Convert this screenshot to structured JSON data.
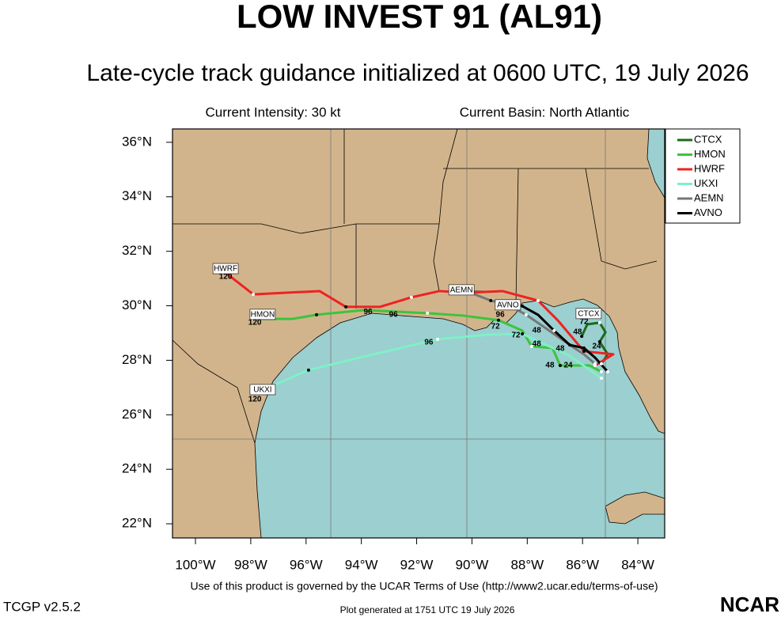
{
  "chart_data": {
    "type": "track-map",
    "title": "LOW INVEST 91 (AL91)",
    "subtitle": "Late-cycle track guidance initialized at 0600 UTC, 19 July 2026",
    "info_left": "Current Intensity: 30 kt",
    "info_right": "Current Basin: North Atlantic",
    "xlim": [
      -100.83,
      -83.03
    ],
    "ylim": [
      21.48,
      36.49
    ],
    "xticks": [
      {
        "value": -100,
        "label": "100°W"
      },
      {
        "value": -98,
        "label": "98°W"
      },
      {
        "value": -96,
        "label": "96°W"
      },
      {
        "value": -94,
        "label": "94°W"
      },
      {
        "value": -92,
        "label": "92°W"
      },
      {
        "value": -90,
        "label": "90°W"
      },
      {
        "value": -88,
        "label": "88°W"
      },
      {
        "value": -86,
        "label": "86°W"
      },
      {
        "value": -84,
        "label": "84°W"
      }
    ],
    "yticks": [
      {
        "value": 22,
        "label": "22°N"
      },
      {
        "value": 24,
        "label": "24°N"
      },
      {
        "value": 26,
        "label": "26°N"
      },
      {
        "value": 28,
        "label": "28°N"
      },
      {
        "value": 30,
        "label": "30°N"
      },
      {
        "value": 32,
        "label": "32°N"
      },
      {
        "value": 34,
        "label": "34°N"
      },
      {
        "value": 36,
        "label": "36°N"
      }
    ],
    "legend": "top-right",
    "series": [
      {
        "name": "CTCX",
        "color": "#1a6b1a",
        "lon": [
          -85.32,
          -85.09,
          -85.38,
          -85.17,
          -85.38,
          -85.83,
          -86.03
        ],
        "lat": [
          27.87,
          28.22,
          28.68,
          29.03,
          29.38,
          29.32,
          28.88
        ]
      },
      {
        "name": "HMON",
        "color": "#3cc43c",
        "lon": [
          -85.32,
          -85.75,
          -86.81,
          -87.09,
          -87.84,
          -88.18,
          -89.04,
          -90.33,
          -91.61,
          -93.9,
          -95.62,
          -96.48,
          -97.91
        ],
        "lat": [
          27.58,
          27.81,
          27.81,
          28.45,
          28.51,
          29.09,
          29.47,
          29.64,
          29.73,
          29.84,
          29.67,
          29.52,
          29.52
        ]
      },
      {
        "name": "HWRF",
        "color": "#ee2222",
        "lon": [
          -85.55,
          -84.89,
          -85.95,
          -86.89,
          -87.61,
          -88.9,
          -90.18,
          -91.18,
          -92.19,
          -93.33,
          -94.56,
          -95.51,
          -97.91,
          -98.91
        ],
        "lat": [
          27.81,
          28.22,
          28.33,
          29.46,
          30.19,
          30.54,
          30.48,
          30.54,
          30.31,
          29.96,
          29.96,
          30.54,
          30.42,
          31.21
        ]
      },
      {
        "name": "UKXI",
        "color": "#7ff0c8",
        "lon": [
          -85.32,
          -86.46,
          -88.18,
          -89.41,
          -91.24,
          -94.05,
          -95.91,
          -97.85
        ],
        "lat": [
          27.34,
          28.16,
          28.97,
          28.94,
          28.77,
          28.1,
          27.64,
          26.79
        ]
      },
      {
        "name": "AEMN",
        "color": "#777777",
        "lon": [
          -85.55,
          -85.95,
          -86.46,
          -87.32,
          -88.04,
          -88.75,
          -89.32,
          -89.9
        ],
        "lat": [
          27.87,
          28.22,
          28.56,
          29.17,
          29.67,
          30.07,
          30.19,
          30.42
        ]
      },
      {
        "name": "AVNO",
        "color": "#000000",
        "lon": [
          -85.09,
          -85.55,
          -85.95,
          -86.46,
          -87.03,
          -87.61,
          -88.18,
          -88.75
        ],
        "lat": [
          27.58,
          28.1,
          28.45,
          28.56,
          29.09,
          29.67,
          29.99,
          30.05
        ]
      }
    ],
    "model_labels": [
      {
        "text": "HWRF",
        "lon": -98.91,
        "lat": 31.35
      },
      {
        "text": "HMON",
        "lon": -97.57,
        "lat": 29.67
      },
      {
        "text": "UKXI",
        "lon": -97.57,
        "lat": 26.91
      },
      {
        "text": "AEMN",
        "lon": -90.38,
        "lat": 30.57
      },
      {
        "text": "AVNO",
        "lon": -88.7,
        "lat": 30.02
      },
      {
        "text": "CTCX",
        "lon": -85.78,
        "lat": 29.7
      }
    ],
    "hour_labels": [
      {
        "text": "120",
        "lon": -98.91,
        "lat": 31.07
      },
      {
        "text": "120",
        "lon": -97.85,
        "lat": 29.38
      },
      {
        "text": "120",
        "lon": -97.85,
        "lat": 26.56
      },
      {
        "text": "96",
        "lon": -93.76,
        "lat": 29.78
      },
      {
        "text": "96",
        "lon": -92.84,
        "lat": 29.67
      },
      {
        "text": "96",
        "lon": -91.56,
        "lat": 28.65
      },
      {
        "text": "96",
        "lon": -88.98,
        "lat": 29.67
      },
      {
        "text": "72",
        "lon": -89.15,
        "lat": 29.23
      },
      {
        "text": "72",
        "lon": -88.41,
        "lat": 28.91
      },
      {
        "text": "72",
        "lon": -85.95,
        "lat": 29.41
      },
      {
        "text": "48",
        "lon": -87.66,
        "lat": 29.09
      },
      {
        "text": "48",
        "lon": -87.66,
        "lat": 28.59
      },
      {
        "text": "48",
        "lon": -86.81,
        "lat": 28.42
      },
      {
        "text": "48",
        "lon": -87.18,
        "lat": 27.81
      },
      {
        "text": "48",
        "lon": -86.18,
        "lat": 29.03
      },
      {
        "text": "24",
        "lon": -86.52,
        "lat": 27.81
      },
      {
        "text": "24",
        "lon": -85.49,
        "lat": 28.51
      }
    ],
    "footer": "Use of this product is governed by the UCAR Terms of Use (http://www2.ucar.edu/terms-of-use)",
    "version": "TCGP v2.5.2",
    "generated": "Plot generated at 1751 UTC   19 July 2026",
    "logo": "NCAR"
  }
}
